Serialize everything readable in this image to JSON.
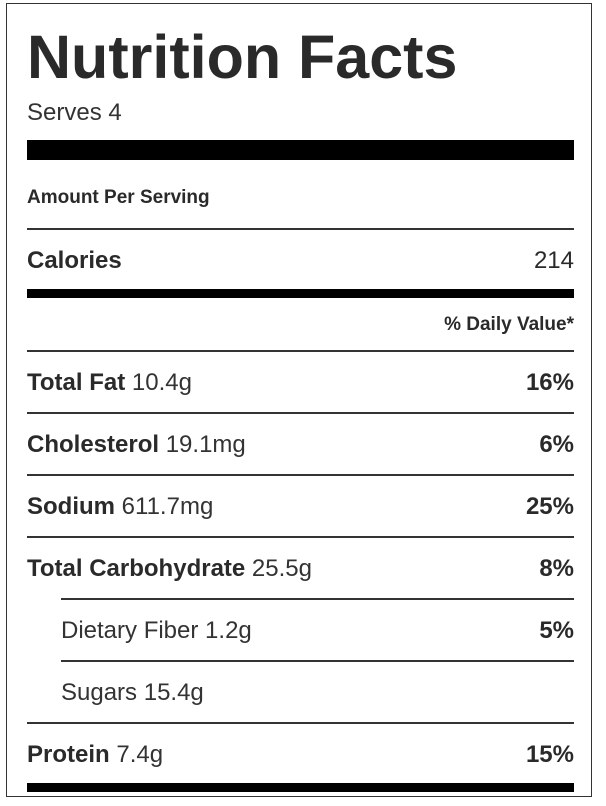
{
  "title": "Nutrition Facts",
  "serves": "Serves 4",
  "amount_per_serving": "Amount Per Serving",
  "calories": {
    "label": "Calories",
    "value": "214"
  },
  "daily_value_header": "% Daily Value*",
  "nutrients": [
    {
      "label": "Total Fat",
      "amount": "10.4g",
      "dv": "16%"
    },
    {
      "label": "Cholesterol",
      "amount": "19.1mg",
      "dv": "6%"
    },
    {
      "label": "Sodium",
      "amount": "611.7mg",
      "dv": "25%"
    },
    {
      "label": "Total Carbohydrate",
      "amount": "25.5g",
      "dv": "8%"
    },
    {
      "label": "Dietary Fiber",
      "amount": "1.2g",
      "dv": "5%"
    },
    {
      "label": "Sugars",
      "amount": "15.4g",
      "dv": ""
    },
    {
      "label": "Protein",
      "amount": "7.4g",
      "dv": "15%"
    }
  ]
}
